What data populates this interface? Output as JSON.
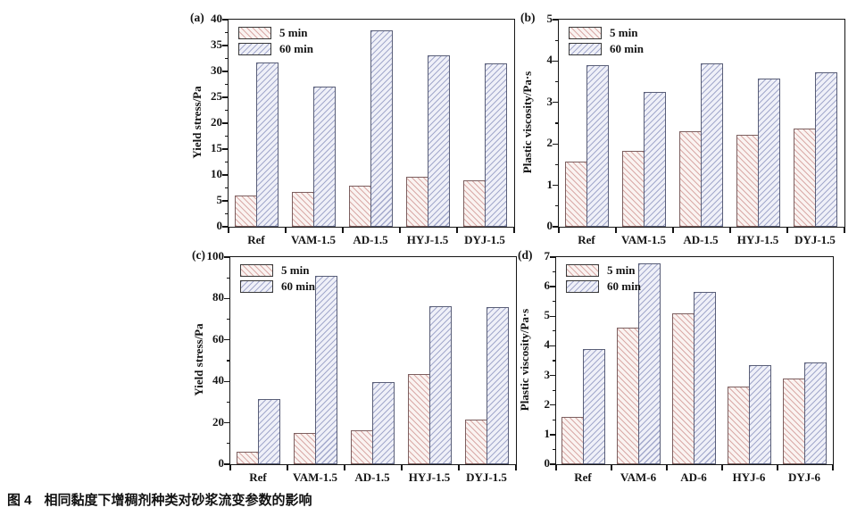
{
  "figure": {
    "caption_label": "图 4",
    "caption_text": "相同黏度下增稠剂种类对砂浆流变参数的影响"
  },
  "legend_series": [
    "5 min",
    "60 min"
  ],
  "colors": {
    "pink_fill": "#faf3f1",
    "pink_hatch": "#d9aaa7",
    "pink_border": "#7d6060",
    "blue_fill": "#eff0f8",
    "blue_hatch": "#a3a9cc",
    "blue_border": "#5a5f78",
    "axis": "#151515"
  },
  "chart_data": [
    {
      "id": "a",
      "panel_label": "(a)",
      "type": "bar",
      "title": "",
      "xlabel": "",
      "ylabel": "Yield stress/Pa",
      "ylim": [
        0,
        40
      ],
      "ytick_step": 5,
      "grid": false,
      "legend_position": "top-left",
      "categories": [
        "Ref",
        "VAM-1.5",
        "AD-1.5",
        "HYJ-1.5",
        "DYJ-1.5"
      ],
      "series": [
        {
          "name": "5 min",
          "values": [
            6.0,
            6.7,
            7.9,
            9.6,
            9.0
          ]
        },
        {
          "name": "60 min",
          "values": [
            31.7,
            27.0,
            38.0,
            33.1,
            31.6
          ]
        }
      ]
    },
    {
      "id": "b",
      "panel_label": "(b)",
      "type": "bar",
      "title": "",
      "xlabel": "",
      "ylabel": "Plastic viscosity/Pa·s",
      "ylim": [
        0,
        5
      ],
      "ytick_step": 1,
      "grid": false,
      "legend_position": "top-left",
      "categories": [
        "Ref",
        "VAM-1.5",
        "AD-1.5",
        "HYJ-1.5",
        "DYJ-1.5"
      ],
      "series": [
        {
          "name": "5 min",
          "values": [
            1.58,
            1.83,
            2.3,
            2.21,
            2.38
          ]
        },
        {
          "name": "60 min",
          "values": [
            3.9,
            3.25,
            3.94,
            3.58,
            3.72
          ]
        }
      ]
    },
    {
      "id": "c",
      "panel_label": "(c)",
      "type": "bar",
      "title": "",
      "xlabel": "",
      "ylabel": "Yield stress/Pa",
      "ylim": [
        0,
        100
      ],
      "ytick_step": 20,
      "grid": false,
      "legend_position": "top-left",
      "categories": [
        "Ref",
        "VAM-1.5",
        "AD-1.5",
        "HYJ-1.5",
        "DYJ-1.5"
      ],
      "series": [
        {
          "name": "5 min",
          "values": [
            6.0,
            15.0,
            16.5,
            43.5,
            21.5
          ]
        },
        {
          "name": "60 min",
          "values": [
            31.5,
            91.0,
            39.5,
            76.5,
            76.0
          ]
        }
      ]
    },
    {
      "id": "d",
      "panel_label": "(d)",
      "type": "bar",
      "title": "",
      "xlabel": "",
      "ylabel": "Plastic viscosity/Pa·s",
      "ylim": [
        0,
        7
      ],
      "ytick_step": 1,
      "grid": false,
      "legend_position": "top-left",
      "categories": [
        "Ref",
        "VAM-6",
        "AD-6",
        "HYJ-6",
        "DYJ-6"
      ],
      "series": [
        {
          "name": "5 min",
          "values": [
            1.6,
            4.63,
            5.1,
            2.63,
            2.9
          ]
        },
        {
          "name": "60 min",
          "values": [
            3.9,
            6.78,
            5.83,
            3.35,
            3.45
          ]
        }
      ]
    }
  ]
}
